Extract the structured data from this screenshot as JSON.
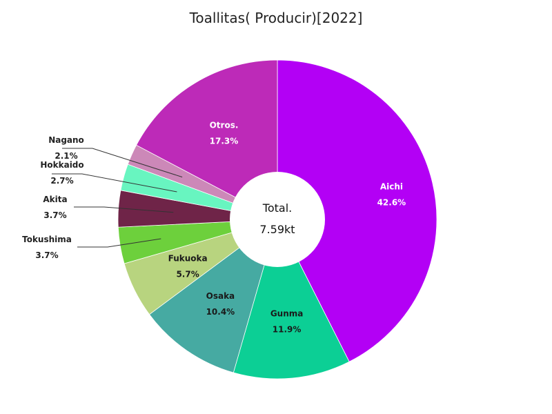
{
  "chart_data": {
    "type": "pie",
    "title": "Toallitas( Producir)[2022]",
    "center_label": "Total.",
    "center_value": "7.59kt",
    "slices": [
      {
        "name": "Aichi",
        "label": "42.6%",
        "value": 42.6,
        "color": "#b300f5"
      },
      {
        "name": "Gunma",
        "label": "11.9%",
        "value": 11.9,
        "color": "#0ccf95"
      },
      {
        "name": "Osaka",
        "label": "10.4%",
        "value": 10.4,
        "color": "#46aaa2"
      },
      {
        "name": "Fukuoka",
        "label": "5.7%",
        "value": 5.7,
        "color": "#b8d47f"
      },
      {
        "name": "Tokushima",
        "label": "3.7%",
        "value": 3.7,
        "color": "#6dd03c"
      },
      {
        "name": "Akita",
        "label": "3.7%",
        "value": 3.7,
        "color": "#6f2448"
      },
      {
        "name": "Hokkaido",
        "label": "2.7%",
        "value": 2.7,
        "color": "#68f5c0"
      },
      {
        "name": "Nagano",
        "label": "2.1%",
        "value": 2.1,
        "color": "#cc88b8"
      },
      {
        "name": "Otros.",
        "label": "17.3%",
        "value": 17.3,
        "color": "#bd2ab8"
      }
    ]
  }
}
